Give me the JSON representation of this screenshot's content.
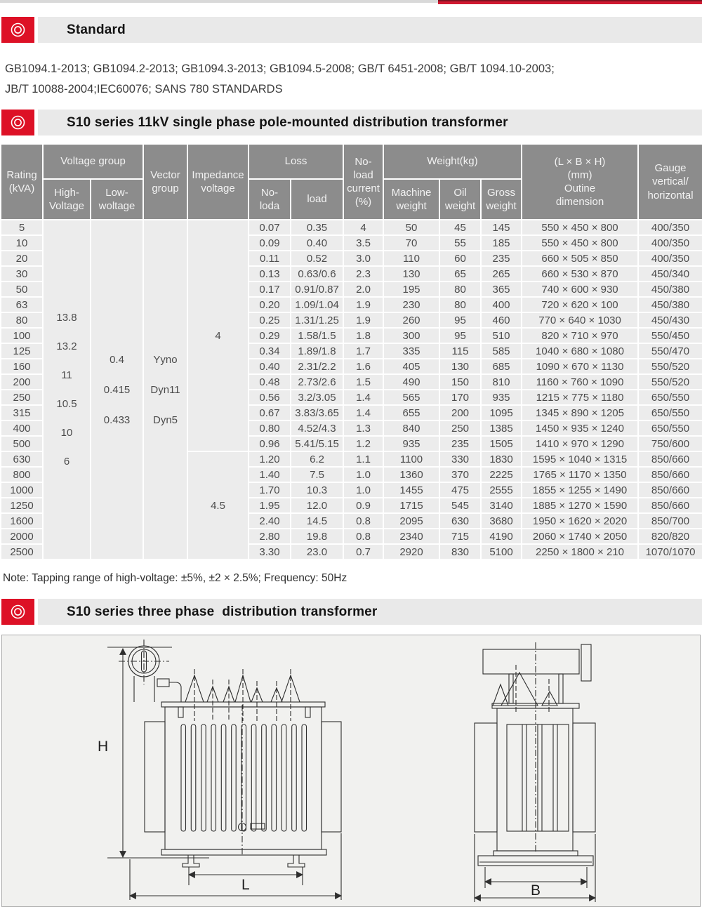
{
  "colors": {
    "accent_red": "#dd1126",
    "top_bar_red": "#d01830",
    "table_header_bg": "#8c8c8c",
    "row_bg": "#ececec"
  },
  "sections": {
    "standard": {
      "title": "Standard"
    },
    "single_phase": {
      "title": "S10 series 11kV single phase pole-mounted distribution transformer"
    },
    "three_phase": {
      "title": "S10 series three phase  distribution transformer"
    }
  },
  "standards_text": {
    "line1": "GB1094.1-2013; GB1094.2-2013; GB1094.3-2013; GB1094.5-2008; GB/T 6451-2008; GB/T 1094.10-2003;",
    "line2": "JB/T 10088-2004;IEC60076; SANS 780 STANDARDS"
  },
  "note": "Note: Tapping range of high-voltage: ±5%,  ±2 × 2.5%; Frequency: 50Hz",
  "table": {
    "headers": {
      "rating": "Rating\n(kVA)",
      "voltage_group": "Voltage group",
      "high_voltage": "High-\nVoltage",
      "low_voltage": "Low-\nwoltage",
      "vector_group": "Vector\ngroup",
      "impedance": "Impedance\nvoltage",
      "loss": "Loss",
      "loss_no_load": "No-\nloda",
      "loss_load": "load",
      "no_load_current": "No-\nload\ncurrent\n(%)",
      "weight": "Weight(kg)",
      "machine_weight": "Machine\nweight",
      "oil_weight": "Oil\nweight",
      "gross_weight": "Gross\nweight",
      "dimension": "(L × B × H)\n(mm)\nOutine\ndimension",
      "gauge": "Gauge\nvertical/\nhorizontal"
    },
    "merged": {
      "high_voltage": [
        "13.8",
        "13.2",
        "11",
        "10.5",
        "10",
        "6"
      ],
      "low_voltage": [
        "0.4",
        "0.415",
        "0.433"
      ],
      "vector_group": [
        "Yyno",
        "Dyn11",
        "Dyn5"
      ],
      "impedance_top": "4",
      "impedance_bottom": "4.5"
    },
    "rows": [
      {
        "rating": "5",
        "no_load_loss": "0.07",
        "load_loss": "0.35",
        "no_load_current": "4",
        "machine_weight": "50",
        "oil_weight": "45",
        "gross_weight": "145",
        "dimension": "550 × 450 × 800",
        "gauge": "400/350"
      },
      {
        "rating": "10",
        "no_load_loss": "0.09",
        "load_loss": "0.40",
        "no_load_current": "3.5",
        "machine_weight": "70",
        "oil_weight": "55",
        "gross_weight": "185",
        "dimension": "550 × 450 × 800",
        "gauge": "400/350"
      },
      {
        "rating": "20",
        "no_load_loss": "0.11",
        "load_loss": "0.52",
        "no_load_current": "3.0",
        "machine_weight": "110",
        "oil_weight": "60",
        "gross_weight": "235",
        "dimension": "660 × 505 × 850",
        "gauge": "400/350"
      },
      {
        "rating": "30",
        "no_load_loss": "0.13",
        "load_loss": "0.63/0.6",
        "no_load_current": "2.3",
        "machine_weight": "130",
        "oil_weight": "65",
        "gross_weight": "265",
        "dimension": "660 × 530 × 870",
        "gauge": "450/340"
      },
      {
        "rating": "50",
        "no_load_loss": "0.17",
        "load_loss": "0.91/0.87",
        "no_load_current": "2.0",
        "machine_weight": "195",
        "oil_weight": "80",
        "gross_weight": "365",
        "dimension": "740 × 600 × 930",
        "gauge": "450/380"
      },
      {
        "rating": "63",
        "no_load_loss": "0.20",
        "load_loss": "1.09/1.04",
        "no_load_current": "1.9",
        "machine_weight": "230",
        "oil_weight": "80",
        "gross_weight": "400",
        "dimension": "720 × 620 × 100",
        "gauge": "450/380"
      },
      {
        "rating": "80",
        "no_load_loss": "0.25",
        "load_loss": "1.31/1.25",
        "no_load_current": "1.9",
        "machine_weight": "260",
        "oil_weight": "95",
        "gross_weight": "460",
        "dimension": "770 × 640 × 1030",
        "gauge": "450/430"
      },
      {
        "rating": "100",
        "no_load_loss": "0.29",
        "load_loss": "1.58/1.5",
        "no_load_current": "1.8",
        "machine_weight": "300",
        "oil_weight": "95",
        "gross_weight": "510",
        "dimension": "820 × 710 × 970",
        "gauge": "550/450"
      },
      {
        "rating": "125",
        "no_load_loss": "0.34",
        "load_loss": "1.89/1.8",
        "no_load_current": "1.7",
        "machine_weight": "335",
        "oil_weight": "115",
        "gross_weight": "585",
        "dimension": "1040 × 680 × 1080",
        "gauge": "550/470"
      },
      {
        "rating": "160",
        "no_load_loss": "0.40",
        "load_loss": "2.31/2.2",
        "no_load_current": "1.6",
        "machine_weight": "405",
        "oil_weight": "130",
        "gross_weight": "685",
        "dimension": "1090 × 670 × 1130",
        "gauge": "550/520"
      },
      {
        "rating": "200",
        "no_load_loss": "0.48",
        "load_loss": "2.73/2.6",
        "no_load_current": "1.5",
        "machine_weight": "490",
        "oil_weight": "150",
        "gross_weight": "810",
        "dimension": "1160 × 760 × 1090",
        "gauge": "550/520"
      },
      {
        "rating": "250",
        "no_load_loss": "0.56",
        "load_loss": "3.2/3.05",
        "no_load_current": "1.4",
        "machine_weight": "565",
        "oil_weight": "170",
        "gross_weight": "935",
        "dimension": "1215 × 775 × 1180",
        "gauge": "650/550"
      },
      {
        "rating": "315",
        "no_load_loss": "0.67",
        "load_loss": "3.83/3.65",
        "no_load_current": "1.4",
        "machine_weight": "655",
        "oil_weight": "200",
        "gross_weight": "1095",
        "dimension": "1345 × 890 × 1205",
        "gauge": "650/550"
      },
      {
        "rating": "400",
        "no_load_loss": "0.80",
        "load_loss": "4.52/4.3",
        "no_load_current": "1.3",
        "machine_weight": "840",
        "oil_weight": "250",
        "gross_weight": "1385",
        "dimension": "1450 × 935 × 1240",
        "gauge": "650/550"
      },
      {
        "rating": "500",
        "no_load_loss": "0.96",
        "load_loss": "5.41/5.15",
        "no_load_current": "1.2",
        "machine_weight": "935",
        "oil_weight": "235",
        "gross_weight": "1505",
        "dimension": "1410 × 970 × 1290",
        "gauge": "750/600"
      },
      {
        "rating": "630",
        "no_load_loss": "1.20",
        "load_loss": "6.2",
        "no_load_current": "1.1",
        "machine_weight": "1100",
        "oil_weight": "330",
        "gross_weight": "1830",
        "dimension": "1595 × 1040 × 1315",
        "gauge": "850/660"
      },
      {
        "rating": "800",
        "no_load_loss": "1.40",
        "load_loss": "7.5",
        "no_load_current": "1.0",
        "machine_weight": "1360",
        "oil_weight": "370",
        "gross_weight": "2225",
        "dimension": "1765 × 1170 × 1350",
        "gauge": "850/660"
      },
      {
        "rating": "1000",
        "no_load_loss": "1.70",
        "load_loss": "10.3",
        "no_load_current": "1.0",
        "machine_weight": "1455",
        "oil_weight": "475",
        "gross_weight": "2555",
        "dimension": "1855 × 1255 × 1490",
        "gauge": "850/660"
      },
      {
        "rating": "1250",
        "no_load_loss": "1.95",
        "load_loss": "12.0",
        "no_load_current": "0.9",
        "machine_weight": "1715",
        "oil_weight": "545",
        "gross_weight": "3140",
        "dimension": "1885 × 1270 × 1590",
        "gauge": "850/660"
      },
      {
        "rating": "1600",
        "no_load_loss": "2.40",
        "load_loss": "14.5",
        "no_load_current": "0.8",
        "machine_weight": "2095",
        "oil_weight": "630",
        "gross_weight": "3680",
        "dimension": "1950 × 1620 × 2020",
        "gauge": "850/700"
      },
      {
        "rating": "2000",
        "no_load_loss": "2.80",
        "load_loss": "19.8",
        "no_load_current": "0.8",
        "machine_weight": "2340",
        "oil_weight": "715",
        "gross_weight": "4190",
        "dimension": "2060 × 1740 × 2050",
        "gauge": "820/820"
      },
      {
        "rating": "2500",
        "no_load_loss": "3.30",
        "load_loss": "23.0",
        "no_load_current": "0.7",
        "machine_weight": "2920",
        "oil_weight": "830",
        "gross_weight": "5100",
        "dimension": "2250 × 1800 × 210",
        "gauge": "1070/1070"
      }
    ]
  },
  "diagram": {
    "height_label": "H",
    "length_label": "L",
    "width_label": "B"
  }
}
